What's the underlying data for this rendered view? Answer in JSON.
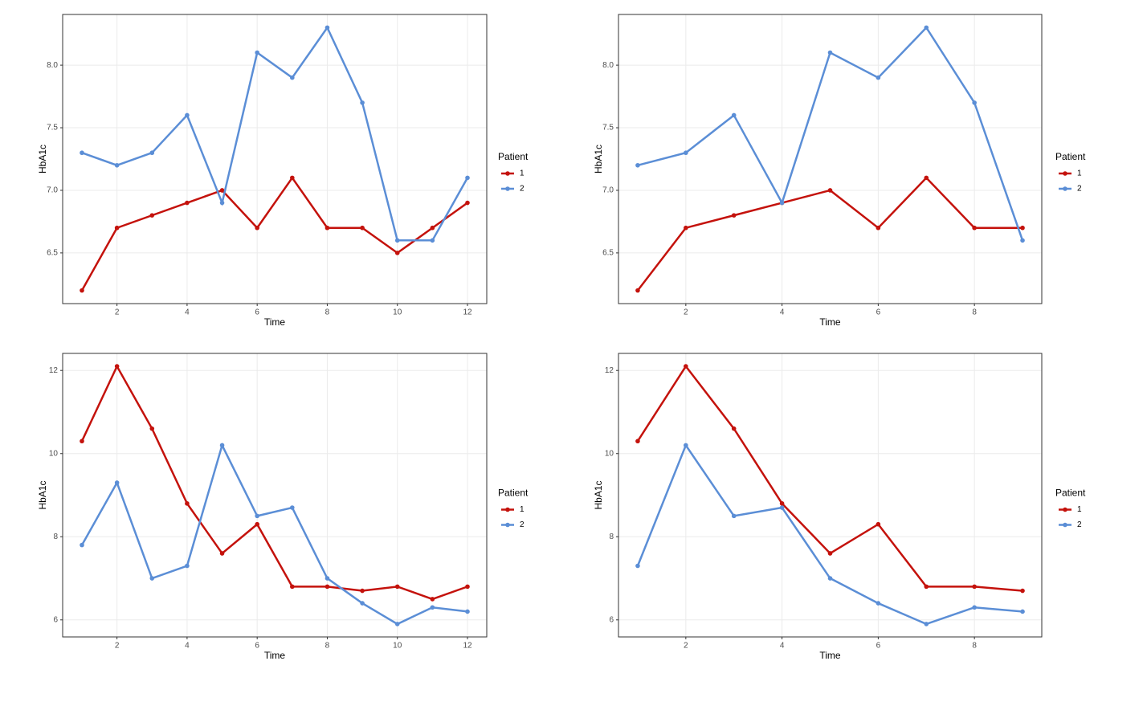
{
  "chart_data": [
    {
      "type": "line",
      "x_label": "Time",
      "y_label": "HbA1c",
      "legend_title": "Patient",
      "grid": true,
      "x": [
        1,
        2,
        3,
        4,
        5,
        6,
        7,
        8,
        9,
        10,
        11,
        12
      ],
      "xlim": [
        0.45,
        12.55
      ],
      "xticks": [
        2,
        4,
        6,
        8,
        10,
        12
      ],
      "ylim": [
        6.095,
        8.405
      ],
      "yticks": [
        6.5,
        {
          "value": 7,
          "label": "7.0"
        },
        7.5,
        {
          "value": 8,
          "label": "8.0"
        }
      ],
      "series": [
        {
          "name": "1",
          "color": "#c4120c",
          "values": [
            6.2,
            6.7,
            6.8,
            6.9,
            7.0,
            6.7,
            7.1,
            6.7,
            6.7,
            6.5,
            6.7,
            6.9
          ]
        },
        {
          "name": "2",
          "color": "#5b8ed6",
          "values": [
            7.3,
            7.2,
            7.3,
            7.6,
            6.9,
            8.1,
            7.9,
            8.3,
            7.7,
            6.6,
            6.6,
            7.1
          ]
        }
      ]
    },
    {
      "type": "line",
      "x_label": "Time",
      "y_label": "HbA1c",
      "legend_title": "Patient",
      "grid": true,
      "x": [
        1,
        2,
        3,
        4,
        5,
        6,
        7,
        8,
        9
      ],
      "xlim": [
        0.6,
        9.4
      ],
      "xticks": [
        2,
        4,
        6,
        8
      ],
      "ylim": [
        6.095,
        8.405
      ],
      "yticks": [
        6.5,
        {
          "value": 7,
          "label": "7.0"
        },
        7.5,
        {
          "value": 8,
          "label": "8.0"
        }
      ],
      "series": [
        {
          "name": "1",
          "color": "#c4120c",
          "values": [
            6.2,
            6.7,
            6.8,
            6.9,
            7.0,
            6.7,
            7.1,
            6.7,
            6.7
          ]
        },
        {
          "name": "2",
          "color": "#5b8ed6",
          "values": [
            7.2,
            7.3,
            7.6,
            6.9,
            8.1,
            7.9,
            8.3,
            7.7,
            6.6
          ]
        }
      ]
    },
    {
      "type": "line",
      "x_label": "Time",
      "y_label": "HbA1c",
      "legend_title": "Patient",
      "grid": true,
      "x": [
        1,
        2,
        3,
        4,
        5,
        6,
        7,
        8,
        9,
        10,
        11,
        12
      ],
      "xlim": [
        0.45,
        12.55
      ],
      "xticks": [
        2,
        4,
        6,
        8,
        10,
        12
      ],
      "ylim": [
        5.59,
        12.41
      ],
      "yticks": [
        6,
        8,
        10,
        12
      ],
      "series": [
        {
          "name": "1",
          "color": "#c4120c",
          "values": [
            10.3,
            12.1,
            10.6,
            8.8,
            7.6,
            8.3,
            6.8,
            6.8,
            6.7,
            6.8,
            6.5,
            6.8
          ]
        },
        {
          "name": "2",
          "color": "#5b8ed6",
          "values": [
            7.8,
            9.3,
            7.0,
            7.3,
            10.2,
            8.5,
            8.7,
            7.0,
            6.4,
            5.9,
            6.3,
            6.2
          ]
        }
      ]
    },
    {
      "type": "line",
      "x_label": "Time",
      "y_label": "HbA1c",
      "legend_title": "Patient",
      "grid": true,
      "x": [
        1,
        2,
        3,
        4,
        5,
        6,
        7,
        8,
        9
      ],
      "xlim": [
        0.6,
        9.4
      ],
      "xticks": [
        2,
        4,
        6,
        8
      ],
      "ylim": [
        5.59,
        12.41
      ],
      "yticks": [
        6,
        8,
        10,
        12
      ],
      "series": [
        {
          "name": "1",
          "color": "#c4120c",
          "values": [
            10.3,
            12.1,
            10.6,
            8.8,
            7.6,
            8.3,
            6.8,
            6.8,
            6.7
          ]
        },
        {
          "name": "2",
          "color": "#5b8ed6",
          "values": [
            7.3,
            10.2,
            8.5,
            8.7,
            7.0,
            6.4,
            5.9,
            6.3,
            6.2
          ]
        }
      ]
    }
  ]
}
